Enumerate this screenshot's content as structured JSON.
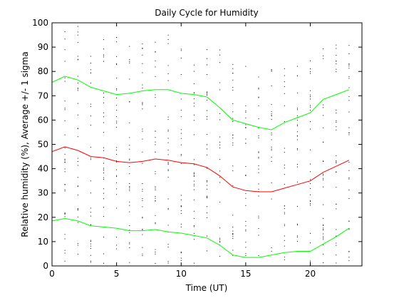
{
  "chart_data": {
    "type": "line",
    "title": "Daily Cycle for Humidity",
    "xlabel": "Time (UT)",
    "ylabel": "Relative humidity (%), Average +/- 1 sigma",
    "xlim": [
      0,
      24
    ],
    "ylim": [
      0,
      100
    ],
    "xticks": [
      0,
      5,
      10,
      15,
      20
    ],
    "yticks": [
      0,
      10,
      20,
      30,
      40,
      50,
      60,
      70,
      80,
      90,
      100
    ],
    "grid": false,
    "legend": "none",
    "series": [
      {
        "color": "#00ff00",
        "x": [
          0,
          1,
          2,
          3,
          4,
          5,
          6,
          7,
          8,
          9,
          10,
          11,
          12,
          13,
          14,
          15,
          16,
          17,
          18,
          19,
          20,
          21,
          22,
          23
        ],
        "y": [
          75.5,
          78,
          76.5,
          73.5,
          72,
          70.5,
          71,
          72,
          72.5,
          72.5,
          71,
          70.5,
          69.5,
          65,
          60,
          58.5,
          57,
          56,
          59,
          61,
          63,
          68.5,
          70.5,
          72.5
        ]
      },
      {
        "color": "#ff0000",
        "x": [
          0,
          1,
          2,
          3,
          4,
          5,
          6,
          7,
          8,
          9,
          10,
          11,
          12,
          13,
          14,
          15,
          16,
          17,
          18,
          19,
          20,
          21,
          22,
          23
        ],
        "y": [
          47,
          49,
          47.5,
          45,
          44.5,
          43,
          42.5,
          43,
          44,
          43.5,
          42.5,
          42,
          40.5,
          37,
          32.5,
          31,
          30.5,
          30.5,
          32,
          33.5,
          35,
          38.5,
          41,
          43.5
        ]
      },
      {
        "color": "#00ff00",
        "x": [
          0,
          1,
          2,
          3,
          4,
          5,
          6,
          7,
          8,
          9,
          10,
          11,
          12,
          13,
          14,
          15,
          16,
          17,
          18,
          19,
          20,
          21,
          22,
          23
        ],
        "y": [
          18.5,
          19.5,
          18.5,
          16.5,
          16,
          15.5,
          14.5,
          14.5,
          15,
          14,
          13.5,
          12.5,
          11.5,
          8.5,
          4.5,
          3.5,
          3.5,
          4.5,
          5.5,
          6,
          6,
          9,
          12,
          15.5
        ]
      }
    ]
  }
}
